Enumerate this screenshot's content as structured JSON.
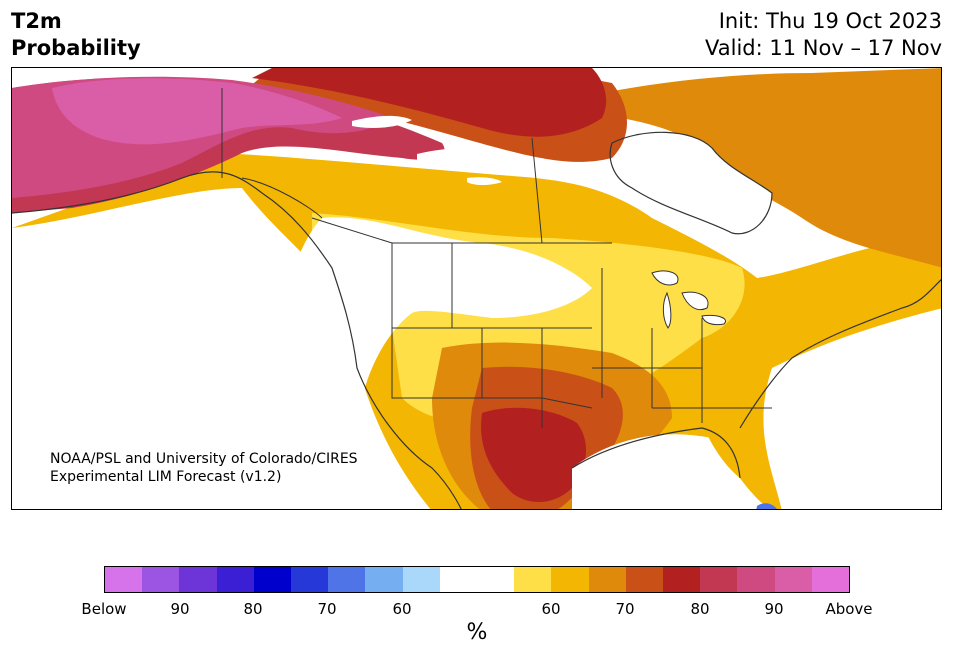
{
  "title": {
    "line1": "T2m",
    "line2": "Probability"
  },
  "subtitle": {
    "init": "Init: Thu 19 Oct 2023",
    "valid": "Valid: 11 Nov – 17 Nov"
  },
  "credit": {
    "line1": "NOAA/PSL and University of Colorado/CIRES",
    "line2": "Experimental LIM Forecast (v1.2)"
  },
  "colorbar": {
    "colors": [
      "#d673ea",
      "#9c54e2",
      "#6d35d8",
      "#3b1fd4",
      "#0000cc",
      "#2638d8",
      "#4f74e8",
      "#76aef2",
      "#aad8fb",
      "#ffffff",
      "#ffffff",
      "#ffdf47",
      "#f3b602",
      "#e08a0b",
      "#c95117",
      "#b32020",
      "#c23752",
      "#cf4a80",
      "#da5da8",
      "#e56fda"
    ],
    "labels": [
      "Below",
      "90",
      "80",
      "70",
      "60",
      "60",
      "70",
      "80",
      "90",
      "Above"
    ],
    "unit": "%"
  },
  "map_colors": {
    "yellow": "#ffdf47",
    "gold": "#f3b602",
    "orange": "#e08a0b",
    "dark_orange": "#c95117",
    "red": "#b32020",
    "crimson": "#c23752",
    "rose": "#cf4a80",
    "pink": "#da5da8",
    "blue": "#4f74e8"
  }
}
